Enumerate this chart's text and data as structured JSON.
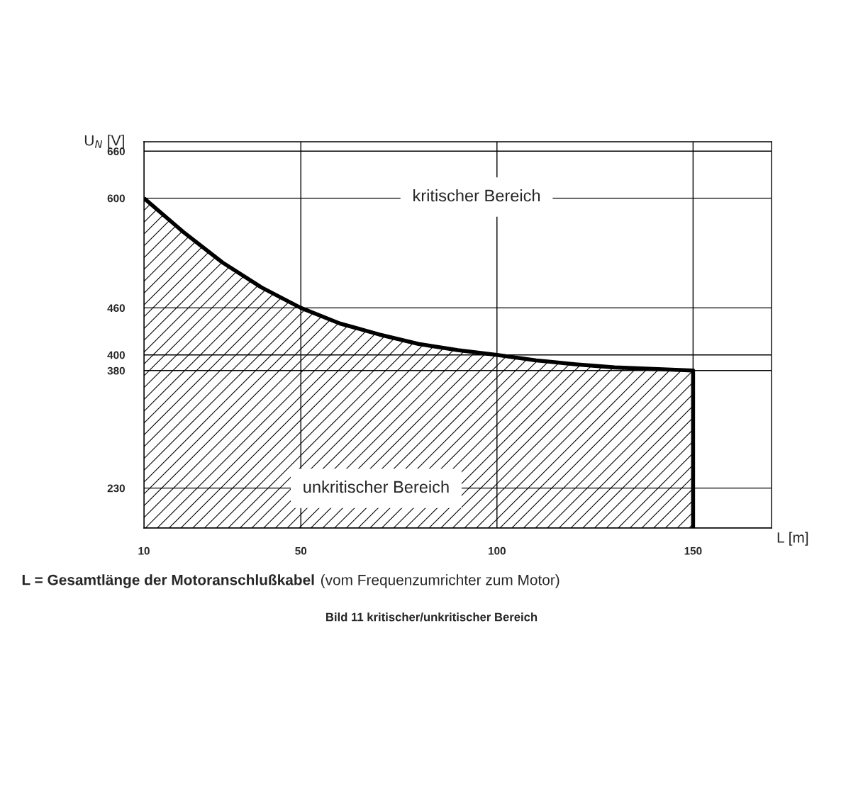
{
  "chart_data": {
    "type": "area",
    "title": "Bild 11 kritischer/unkritischer Bereich",
    "xlabel": "L [m]",
    "ylabel": "U$_{N}$ [V]",
    "x": [
      10,
      20,
      30,
      40,
      50,
      60,
      70,
      80,
      90,
      100,
      110,
      120,
      130,
      140,
      150
    ],
    "series": [
      {
        "color": "#000000",
        "values": [
          600,
          557,
          518,
          486,
          460,
          440,
          426,
          414,
          406,
          400,
          393,
          388,
          384,
          382,
          380
        ]
      }
    ],
    "xlim": [
      10,
      170
    ],
    "ylim": [
      179,
      672
    ],
    "xticks": [
      10,
      50,
      100,
      150
    ],
    "yticks": [
      {
        "value": 179,
        "label": null
      },
      230,
      380,
      400,
      460,
      600,
      660
    ],
    "grid": true,
    "annotations": [
      "kritischer Bereich",
      "unkritischer Bereich",
      "L = Gesamtlänge der Motoranschlußkabel",
      "(vom Frequenzumrichter zum Motor)"
    ]
  }
}
